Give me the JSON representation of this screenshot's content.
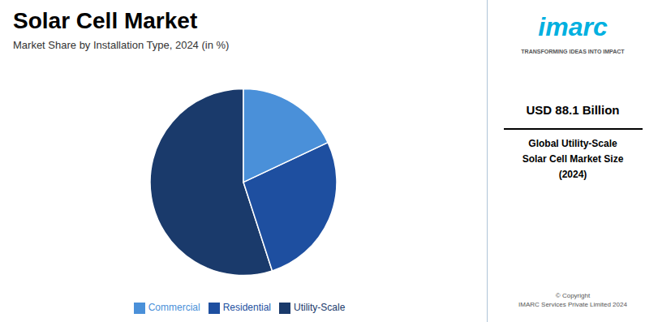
{
  "chart_data": {
    "type": "pie",
    "title": "Solar Cell Market",
    "subtitle": "Market Share by Installation Type, 2024 (in %)",
    "categories": [
      "Utility-Scale",
      "Residential",
      "Commercial"
    ],
    "values": [
      55,
      27,
      18
    ],
    "colors": [
      "#1a3a6b",
      "#1e4fa0",
      "#4a90d9"
    ],
    "legend": "bottom",
    "annotations": [
      "imarc",
      "TRANSFORMING IDEAS INTO IMPACT",
      "USD 88.1 Billion",
      "Global Utility-Scale",
      "Solar Cell Market Size",
      "(2024)",
      "© Copyright",
      "IMARC Services Private Limited 2024"
    ]
  }
}
